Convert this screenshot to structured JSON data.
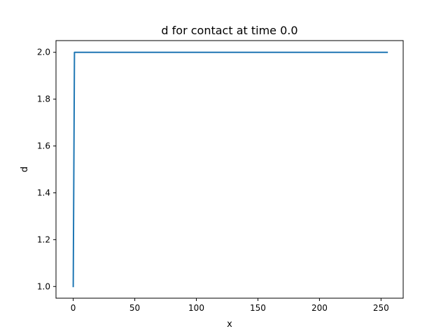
{
  "chart_data": {
    "type": "line",
    "title": "d for contact at time 0.0",
    "xlabel": "x",
    "ylabel": "d",
    "xlim": [
      -14,
      268
    ],
    "ylim": [
      0.95,
      2.05
    ],
    "xticks": [
      0,
      50,
      100,
      150,
      200,
      250
    ],
    "xtick_labels": [
      "0",
      "50",
      "100",
      "150",
      "200",
      "250"
    ],
    "yticks": [
      1.0,
      1.2,
      1.4,
      1.6,
      1.8,
      2.0
    ],
    "ytick_labels": [
      "1.0",
      "1.2",
      "1.4",
      "1.6",
      "1.8",
      "2.0"
    ],
    "grid": false,
    "series": [
      {
        "color": "#1f77b4",
        "x": [
          0,
          1,
          255
        ],
        "y": [
          1.0,
          2.0,
          2.0
        ]
      }
    ]
  }
}
